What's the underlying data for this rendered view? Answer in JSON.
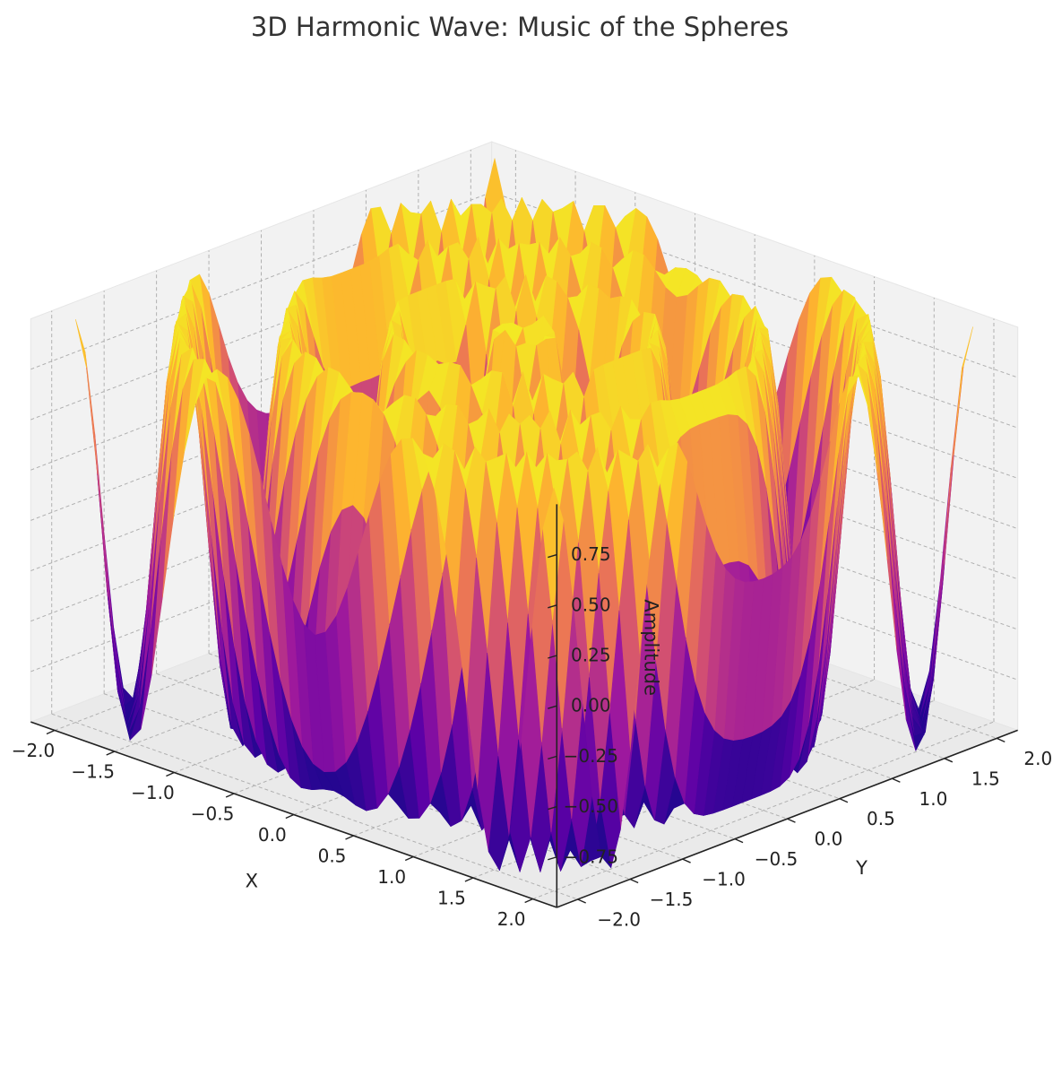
{
  "chart_data": {
    "type": "surface3d",
    "title": "3D Harmonic Wave: Music of the Spheres",
    "xlabel": "X",
    "ylabel": "Y",
    "zlabel": "Amplitude",
    "xlim": [
      -2.2,
      2.2
    ],
    "ylim": [
      -2.2,
      2.2
    ],
    "zlim": [
      -1.0,
      1.0
    ],
    "x_ticks": [
      -2.0,
      -1.5,
      -1.0,
      -0.5,
      0.0,
      0.5,
      1.0,
      1.5,
      2.0
    ],
    "x_tick_labels": [
      "−2.0",
      "−1.5",
      "−1.0",
      "−0.5",
      "0.0",
      "0.5",
      "1.0",
      "1.5",
      "2.0"
    ],
    "y_ticks": [
      -2.0,
      -1.5,
      -1.0,
      -0.5,
      0.0,
      0.5,
      1.0,
      1.5,
      2.0
    ],
    "y_tick_labels": [
      "−2.0",
      "−1.5",
      "−1.0",
      "−0.5",
      "0.0",
      "0.5",
      "1.0",
      "1.5",
      "2.0"
    ],
    "z_ticks": [
      -0.75,
      -0.5,
      -0.25,
      0.0,
      0.25,
      0.5,
      0.75
    ],
    "z_tick_labels": [
      "−0.75",
      "−0.50",
      "−0.25",
      "0.00",
      "0.25",
      "0.50",
      "0.75"
    ],
    "colormap": "plasma",
    "colormap_colors": [
      "#0d0887",
      "#5c01a6",
      "#9c179e",
      "#cc4778",
      "#ed7953",
      "#fdb42f",
      "#f0f921"
    ],
    "surface": {
      "x_range": [
        -2.0,
        2.0
      ],
      "y_range": [
        -2.0,
        2.0
      ],
      "z_range": [
        -1.0,
        1.0
      ]
    },
    "grid": true,
    "legend": "none",
    "view": {
      "elevation_deg": 30,
      "azimuth_deg": -60
    }
  }
}
